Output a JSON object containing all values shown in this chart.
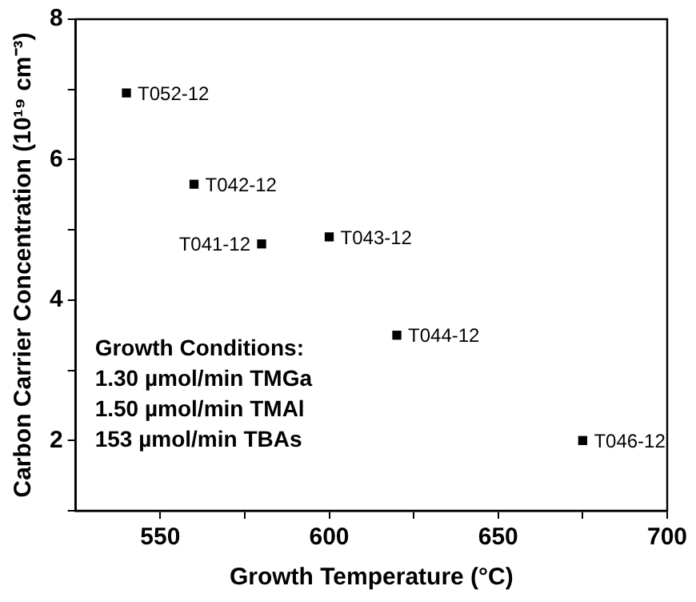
{
  "chart_data": {
    "type": "scatter",
    "xlabel": "Growth Temperature (°C)",
    "ylabel": "Carbon Carrier Concentration (10¹⁹ cm⁻³)",
    "x": [
      540,
      560,
      580,
      600,
      620,
      675
    ],
    "series": [
      {
        "color": "#000000",
        "values": [
          6.95,
          5.65,
          4.8,
          4.9,
          3.5,
          2.0
        ]
      }
    ],
    "xlim": [
      525,
      700
    ],
    "xticks": [
      550,
      {
        "value": 575,
        "label": null
      },
      600,
      {
        "value": 625,
        "label": null
      },
      650,
      {
        "value": 675,
        "label": null
      },
      700
    ],
    "ylim": [
      1,
      8
    ],
    "yticks": [
      {
        "value": 1,
        "label": null
      },
      2,
      {
        "value": 3,
        "label": null
      },
      4,
      {
        "value": 5,
        "label": null
      },
      6,
      {
        "value": 7,
        "label": null
      },
      8
    ],
    "grid": false,
    "legend": false,
    "marker": "square",
    "annotations": [
      {
        "text": "T052-12",
        "x": 540,
        "y": 6.95
      },
      {
        "text": "T042-12",
        "x": 560,
        "y": 5.65
      },
      {
        "text": "T041-12",
        "x": 580,
        "y": 4.8
      },
      {
        "text": "T043-12",
        "x": 600,
        "y": 4.9
      },
      {
        "text": "T044-12",
        "x": 620,
        "y": 3.5
      },
      {
        "text": "T046-12",
        "x": 675,
        "y": 2.0
      },
      "Growth Conditions:",
      "1.30 µmol/min TMGa",
      "1.50 µmol/min TMAl",
      "153 µmol/min TBAs"
    ]
  }
}
